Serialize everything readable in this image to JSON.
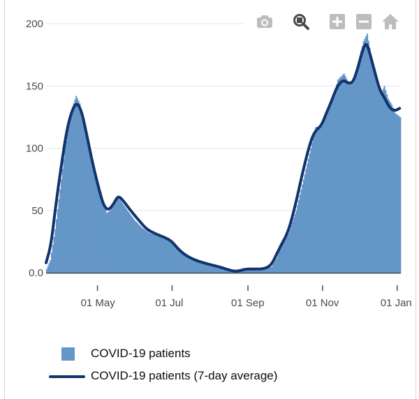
{
  "chart_data": {
    "type": "bar",
    "title": "",
    "xlabel": "",
    "ylabel": "",
    "x_start": "2020-03-20",
    "x_end": "2021-01-03",
    "xlim": [
      "2020-03-20",
      "2021-01-04"
    ],
    "ylim": [
      0,
      200
    ],
    "yticks": [
      0,
      50,
      100,
      150,
      200
    ],
    "ytick_labels": [
      "0.0",
      "50",
      "100",
      "150",
      "200"
    ],
    "xticks": [
      "2020-05-01",
      "2020-07-01",
      "2020-09-01",
      "2020-11-01",
      "2021-01-01"
    ],
    "xtick_labels": [
      "01 May",
      "01 Jul",
      "01 Sep",
      "01 Nov",
      "01 Jan"
    ],
    "grid": true,
    "legend_position": "bottom",
    "series": [
      {
        "name": "COVID-19 patients",
        "kind": "bar",
        "color": "#6596c8",
        "points": [
          [
            "2020-03-20",
            3
          ],
          [
            "2020-03-23",
            10
          ],
          [
            "2020-03-27",
            35
          ],
          [
            "2020-04-01",
            75
          ],
          [
            "2020-04-04",
            100
          ],
          [
            "2020-04-07",
            118
          ],
          [
            "2020-04-10",
            133
          ],
          [
            "2020-04-13",
            142
          ],
          [
            "2020-04-16",
            136
          ],
          [
            "2020-04-19",
            122
          ],
          [
            "2020-04-23",
            105
          ],
          [
            "2020-04-27",
            88
          ],
          [
            "2020-05-01",
            72
          ],
          [
            "2020-05-05",
            58
          ],
          [
            "2020-05-08",
            48
          ],
          [
            "2020-05-11",
            50
          ],
          [
            "2020-05-14",
            58
          ],
          [
            "2020-05-17",
            62
          ],
          [
            "2020-05-20",
            57
          ],
          [
            "2020-05-25",
            50
          ],
          [
            "2020-05-31",
            42
          ],
          [
            "2020-06-06",
            36
          ],
          [
            "2020-06-12",
            32
          ],
          [
            "2020-06-18",
            30
          ],
          [
            "2020-06-25",
            27
          ],
          [
            "2020-07-01",
            24
          ],
          [
            "2020-07-06",
            18
          ],
          [
            "2020-07-12",
            13
          ],
          [
            "2020-07-20",
            9
          ],
          [
            "2020-07-30",
            7
          ],
          [
            "2020-08-08",
            4
          ],
          [
            "2020-08-17",
            2
          ],
          [
            "2020-08-23",
            1
          ],
          [
            "2020-08-30",
            3
          ],
          [
            "2020-09-06",
            3
          ],
          [
            "2020-09-14",
            3
          ],
          [
            "2020-09-20",
            5
          ],
          [
            "2020-09-24",
            12
          ],
          [
            "2020-09-28",
            22
          ],
          [
            "2020-10-04",
            32
          ],
          [
            "2020-10-10",
            50
          ],
          [
            "2020-10-16",
            75
          ],
          [
            "2020-10-22",
            100
          ],
          [
            "2020-10-26",
            117
          ],
          [
            "2020-10-31",
            118
          ],
          [
            "2020-11-04",
            128
          ],
          [
            "2020-11-08",
            138
          ],
          [
            "2020-11-13",
            155
          ],
          [
            "2020-11-18",
            160
          ],
          [
            "2020-11-22",
            152
          ],
          [
            "2020-11-26",
            155
          ],
          [
            "2020-11-30",
            170
          ],
          [
            "2020-12-04",
            186
          ],
          [
            "2020-12-07",
            192
          ],
          [
            "2020-12-10",
            175
          ],
          [
            "2020-12-14",
            160
          ],
          [
            "2020-12-18",
            143
          ],
          [
            "2020-12-21",
            150
          ],
          [
            "2020-12-24",
            140
          ],
          [
            "2020-12-27",
            135
          ],
          [
            "2020-12-30",
            128
          ],
          [
            "2021-01-03",
            125
          ]
        ]
      },
      {
        "name": "COVID-19 patients (7-day average)",
        "kind": "line",
        "color": "#12336b",
        "points": [
          [
            "2020-03-20",
            8
          ],
          [
            "2020-03-24",
            22
          ],
          [
            "2020-03-28",
            55
          ],
          [
            "2020-04-02",
            90
          ],
          [
            "2020-04-06",
            115
          ],
          [
            "2020-04-10",
            130
          ],
          [
            "2020-04-14",
            137
          ],
          [
            "2020-04-18",
            130
          ],
          [
            "2020-04-22",
            112
          ],
          [
            "2020-04-27",
            88
          ],
          [
            "2020-05-02",
            68
          ],
          [
            "2020-05-06",
            54
          ],
          [
            "2020-05-10",
            50
          ],
          [
            "2020-05-14",
            55
          ],
          [
            "2020-05-18",
            62
          ],
          [
            "2020-05-22",
            58
          ],
          [
            "2020-05-28",
            50
          ],
          [
            "2020-06-04",
            42
          ],
          [
            "2020-06-10",
            35
          ],
          [
            "2020-06-18",
            31
          ],
          [
            "2020-06-26",
            28
          ],
          [
            "2020-07-01",
            25
          ],
          [
            "2020-07-06",
            19
          ],
          [
            "2020-07-12",
            14
          ],
          [
            "2020-07-20",
            10
          ],
          [
            "2020-07-30",
            7
          ],
          [
            "2020-08-08",
            5
          ],
          [
            "2020-08-17",
            2
          ],
          [
            "2020-08-23",
            1
          ],
          [
            "2020-08-30",
            3
          ],
          [
            "2020-09-06",
            3
          ],
          [
            "2020-09-14",
            3
          ],
          [
            "2020-09-20",
            6
          ],
          [
            "2020-09-24",
            14
          ],
          [
            "2020-09-28",
            22
          ],
          [
            "2020-10-04",
            33
          ],
          [
            "2020-10-10",
            55
          ],
          [
            "2020-10-16",
            82
          ],
          [
            "2020-10-22",
            105
          ],
          [
            "2020-10-26",
            114
          ],
          [
            "2020-10-31",
            118
          ],
          [
            "2020-11-04",
            128
          ],
          [
            "2020-11-08",
            137
          ],
          [
            "2020-11-13",
            150
          ],
          [
            "2020-11-18",
            155
          ],
          [
            "2020-11-22",
            152
          ],
          [
            "2020-11-26",
            153
          ],
          [
            "2020-11-30",
            165
          ],
          [
            "2020-12-04",
            180
          ],
          [
            "2020-12-07",
            185
          ],
          [
            "2020-12-10",
            175
          ],
          [
            "2020-12-14",
            160
          ],
          [
            "2020-12-18",
            146
          ],
          [
            "2020-12-22",
            140
          ],
          [
            "2020-12-26",
            132
          ],
          [
            "2020-12-30",
            130
          ],
          [
            "2021-01-03",
            132
          ]
        ]
      }
    ]
  },
  "toolbar": {
    "buttons": [
      {
        "name": "camera-icon"
      },
      {
        "name": "zoom-icon"
      },
      {
        "name": "zoom-in-icon"
      },
      {
        "name": "zoom-out-icon"
      },
      {
        "name": "home-icon"
      }
    ]
  },
  "legend": {
    "items": [
      {
        "label": "COVID-19 patients",
        "kind": "bar",
        "color": "#6596c8"
      },
      {
        "label": "COVID-19 patients (7-day average)",
        "kind": "line",
        "color": "#12336b"
      }
    ]
  }
}
